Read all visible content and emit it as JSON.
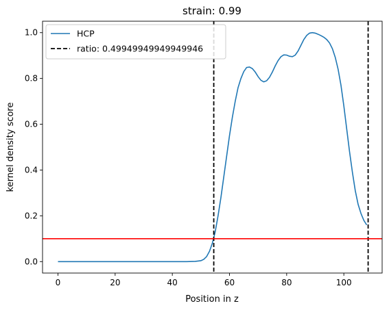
{
  "chart_data": {
    "type": "line",
    "title": "strain: 0.99",
    "xlabel": "Position in z",
    "ylabel": "kernel density score",
    "xlim": [
      -5.4,
      113.4
    ],
    "ylim": [
      -0.05,
      1.05
    ],
    "x_ticks": [
      0,
      20,
      40,
      60,
      80,
      100
    ],
    "y_ticks": [
      0.0,
      0.2,
      0.4,
      0.6,
      0.8,
      1.0
    ],
    "x_tick_labels": [
      "0",
      "20",
      "40",
      "60",
      "80",
      "100"
    ],
    "y_tick_labels": [
      "0.0",
      "0.2",
      "0.4",
      "0.6",
      "0.8",
      "1.0"
    ],
    "grid": false,
    "legend_position": "upper left",
    "series": [
      {
        "name": "HCP",
        "color": "#1f77b4",
        "x": [
          0,
          10,
          20,
          30,
          40,
          45,
          48,
          50,
          51,
          52,
          53,
          54,
          55,
          56,
          57,
          58,
          59,
          60,
          61,
          62,
          63,
          64,
          65,
          66,
          67,
          68,
          69,
          70,
          71,
          72,
          73,
          74,
          75,
          76,
          77,
          78,
          79,
          80,
          81,
          82,
          83,
          84,
          85,
          86,
          87,
          88,
          89,
          90,
          91,
          92,
          93,
          94,
          95,
          96,
          97,
          98,
          99,
          100,
          101,
          102,
          103,
          104,
          105,
          106,
          107,
          108
        ],
        "y": [
          0.0,
          0.0,
          0.0,
          0.0,
          0.0,
          0.0,
          0.001,
          0.004,
          0.01,
          0.022,
          0.045,
          0.08,
          0.13,
          0.2,
          0.28,
          0.37,
          0.46,
          0.55,
          0.63,
          0.7,
          0.76,
          0.8,
          0.83,
          0.848,
          0.85,
          0.843,
          0.828,
          0.808,
          0.792,
          0.785,
          0.79,
          0.805,
          0.828,
          0.855,
          0.878,
          0.895,
          0.903,
          0.902,
          0.897,
          0.895,
          0.902,
          0.92,
          0.945,
          0.97,
          0.988,
          0.998,
          1.0,
          0.998,
          0.993,
          0.987,
          0.98,
          0.97,
          0.955,
          0.93,
          0.892,
          0.84,
          0.77,
          0.68,
          0.58,
          0.48,
          0.39,
          0.31,
          0.25,
          0.21,
          0.18,
          0.16
        ]
      }
    ],
    "vlines": [
      {
        "label": "ratio: 0.4994994994994994​6",
        "x": 54.5,
        "color": "#000000",
        "style": "dashed"
      },
      {
        "label": "",
        "x": 108.5,
        "color": "#000000",
        "style": "dashed"
      }
    ],
    "hlines": [
      {
        "y": 0.1,
        "color": "#ff0000"
      }
    ],
    "legend": [
      {
        "label": "HCP",
        "style": "solid",
        "color": "#1f77b4"
      },
      {
        "label": "ratio: 0.49949949949949946",
        "style": "dashed",
        "color": "#000000"
      }
    ]
  }
}
